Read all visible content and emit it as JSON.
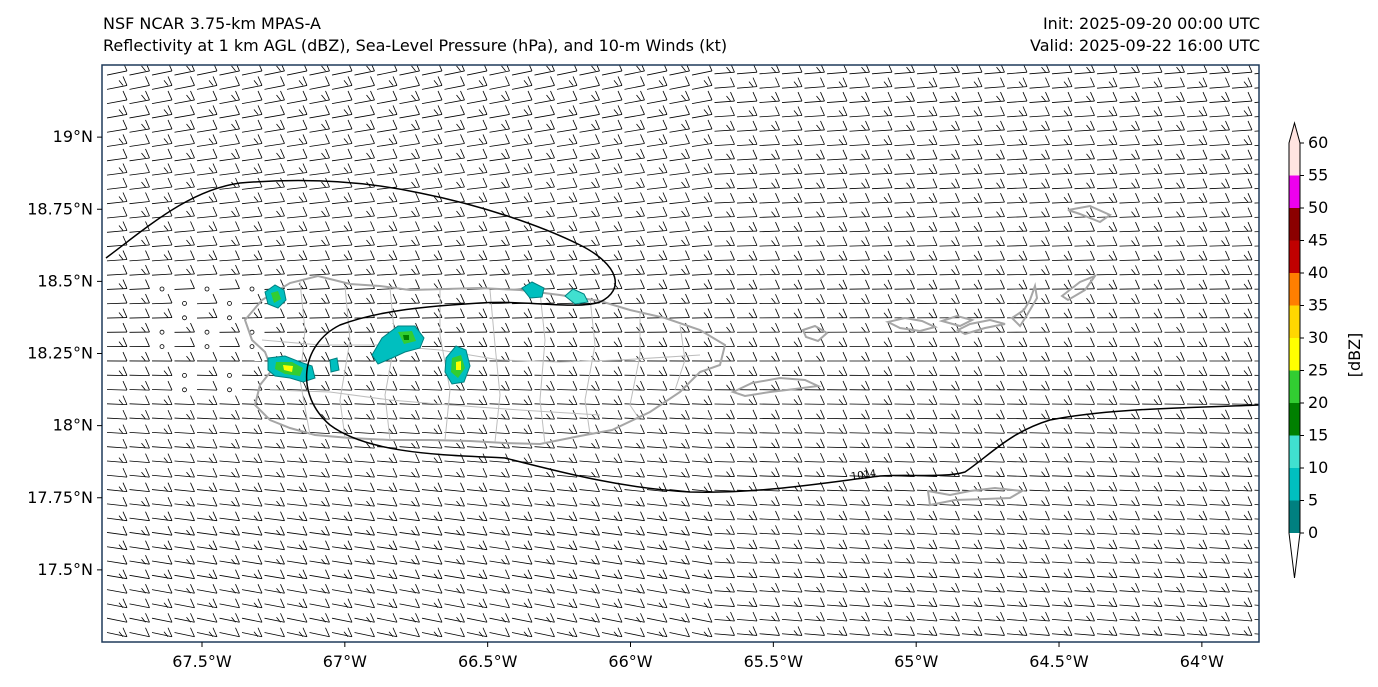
{
  "header": {
    "title_line1": "NSF NCAR 3.75-km MPAS-A",
    "title_line2": "Reflectivity at 1 km AGL (dBZ), Sea-Level Pressure (hPa), and 10-m Winds (kt)",
    "init": "Init: 2025-09-20 00:00 UTC",
    "valid": "Valid: 2025-09-22 16:00 UTC"
  },
  "map": {
    "lon_range": [
      -67.85,
      -63.8
    ],
    "lat_range": [
      17.25,
      19.25
    ],
    "lat_ticks": [
      {
        "value": 19.0,
        "label": "19°N"
      },
      {
        "value": 18.75,
        "label": "18.75°N"
      },
      {
        "value": 18.5,
        "label": "18.5°N"
      },
      {
        "value": 18.25,
        "label": "18.25°N"
      },
      {
        "value": 18.0,
        "label": "18°N"
      },
      {
        "value": 17.75,
        "label": "17.75°N"
      },
      {
        "value": 17.5,
        "label": "17.5°N"
      }
    ],
    "lon_ticks": [
      {
        "value": -67.5,
        "label": "67.5°W"
      },
      {
        "value": -67.0,
        "label": "67°W"
      },
      {
        "value": -66.5,
        "label": "66.5°W"
      },
      {
        "value": -66.0,
        "label": "66°W"
      },
      {
        "value": -65.5,
        "label": "65.5°W"
      },
      {
        "value": -65.0,
        "label": "65°W"
      },
      {
        "value": -64.5,
        "label": "64.5°W"
      },
      {
        "value": -64.0,
        "label": "64°W"
      }
    ],
    "isobar_label": "1014",
    "isobar_value": 1014
  },
  "colorbar": {
    "label": "[dBZ]",
    "levels": [
      0,
      5,
      10,
      15,
      20,
      25,
      30,
      35,
      40,
      45,
      50,
      55,
      60
    ],
    "tick_labels": [
      "0",
      "5",
      "10",
      "15",
      "20",
      "25",
      "30",
      "35",
      "40",
      "45",
      "50",
      "55",
      "60"
    ],
    "colors": [
      "#ffffff",
      "#008080",
      "#00bfbf",
      "#40e0d0",
      "#008000",
      "#32cd32",
      "#ffff00",
      "#ffd700",
      "#ff7f00",
      "#c00000",
      "#8b0000",
      "#ee00ee",
      "#ffe4e1"
    ]
  },
  "styles": {
    "ocean": "#ffffff",
    "coast": "#a6a6a6",
    "isobar": "#000000",
    "barb": "#000000",
    "frame": "#1f3a5a"
  }
}
